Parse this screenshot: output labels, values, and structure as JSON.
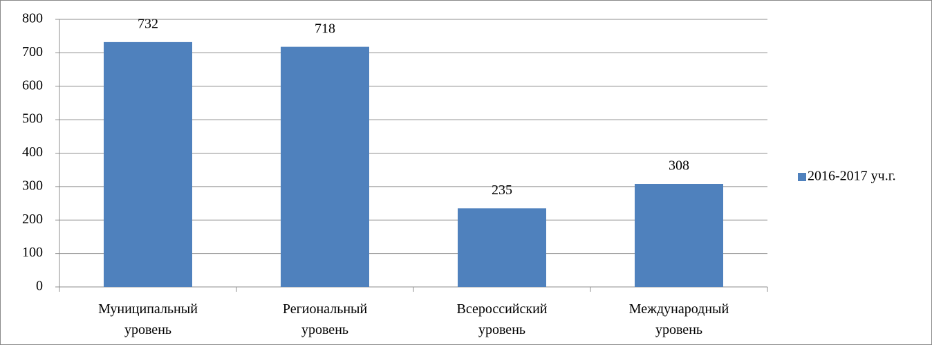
{
  "chart_data": {
    "type": "bar",
    "categories": [
      "Муниципальный уровень",
      "Региональный уровень",
      "Всероссийский уровень",
      "Международный уровень"
    ],
    "series": [
      {
        "name": "2016-2017 уч.г.",
        "color": "#4f81bd",
        "values": [
          732,
          718,
          235,
          308
        ]
      }
    ],
    "ylim": [
      0,
      800
    ],
    "yticks": [
      0,
      100,
      200,
      300,
      400,
      500,
      600,
      700,
      800
    ],
    "grid": true,
    "legend": "right"
  }
}
